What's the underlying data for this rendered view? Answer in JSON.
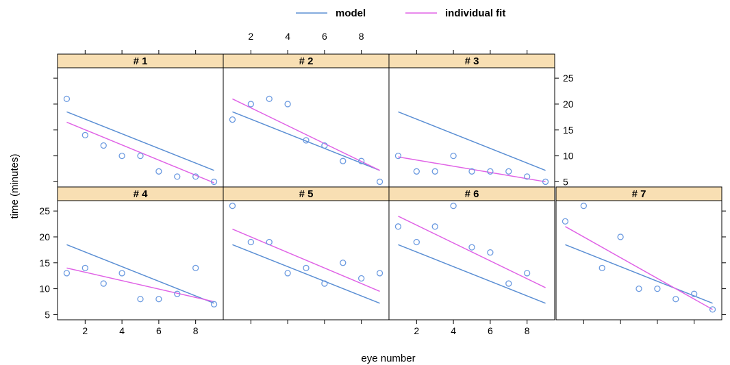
{
  "chart_data": {
    "type": "scatter",
    "layout": "lattice 4 columns x 2 rows, panels #1-#3 top row, #4-#7 bottom row",
    "xlabel": "eye number",
    "ylabel": "time (minutes)",
    "xlim": [
      0.5,
      9.5
    ],
    "ylim": [
      4,
      27
    ],
    "xticks": [
      2,
      4,
      6,
      8
    ],
    "yticks": [
      5,
      10,
      15,
      20,
      25
    ],
    "legend": {
      "placement": "top",
      "entries": [
        {
          "label": "model",
          "color": "#5b8fd4"
        },
        {
          "label": "individual fit",
          "color": "#e063e6"
        }
      ]
    },
    "colors": {
      "strip": "#f8dfb3",
      "points": "#6b9ae0",
      "model_line": "#5b8fd4",
      "fit_line": "#e063e6"
    },
    "model_line": {
      "x": [
        1,
        9
      ],
      "y": [
        18.5,
        7.2
      ]
    },
    "panels": [
      {
        "label": "# 1",
        "x": [
          1,
          2,
          3,
          4,
          5,
          6,
          7,
          8,
          9
        ],
        "y": [
          21,
          14,
          12,
          10,
          10,
          7,
          6,
          6,
          5
        ],
        "fit_line": {
          "x": [
            1,
            9
          ],
          "y": [
            16.5,
            4.8
          ]
        }
      },
      {
        "label": "# 2",
        "x": [
          1,
          2,
          3,
          4,
          5,
          6,
          7,
          8,
          9
        ],
        "y": [
          17,
          20,
          21,
          20,
          13,
          12,
          9,
          9,
          5
        ],
        "fit_line": {
          "x": [
            1,
            9
          ],
          "y": [
            21.0,
            7.2
          ]
        }
      },
      {
        "label": "# 3",
        "x": [
          1,
          2,
          3,
          4,
          5,
          6,
          7,
          8,
          9
        ],
        "y": [
          10,
          7,
          7,
          10,
          7,
          7,
          7,
          6,
          5
        ],
        "fit_line": {
          "x": [
            1,
            9
          ],
          "y": [
            9.8,
            5.0
          ]
        }
      },
      {
        "label": "# 4",
        "x": [
          1,
          2,
          3,
          4,
          5,
          6,
          7,
          8,
          9
        ],
        "y": [
          13,
          14,
          11,
          13,
          8,
          8,
          9,
          14,
          7
        ],
        "fit_line": {
          "x": [
            1,
            9
          ],
          "y": [
            14.0,
            7.5
          ]
        }
      },
      {
        "label": "# 5",
        "x": [
          1,
          2,
          3,
          4,
          5,
          6,
          7,
          8,
          9
        ],
        "y": [
          26,
          19,
          19,
          13,
          14,
          11,
          15,
          12,
          13
        ],
        "fit_line": {
          "x": [
            1,
            9
          ],
          "y": [
            21.5,
            9.5
          ]
        }
      },
      {
        "label": "# 6",
        "x": [
          1,
          2,
          3,
          4,
          5,
          6,
          7,
          8
        ],
        "y": [
          22,
          19,
          22,
          26,
          18,
          17,
          11,
          13
        ],
        "fit_line": {
          "x": [
            1,
            9
          ],
          "y": [
            24.0,
            10.2
          ]
        }
      },
      {
        "label": "# 7",
        "x": [
          1,
          2,
          3,
          4,
          5,
          6,
          7,
          8,
          9
        ],
        "y": [
          23,
          26,
          14,
          20,
          10,
          10,
          8,
          9,
          6
        ],
        "fit_line": {
          "x": [
            1,
            9
          ],
          "y": [
            22.0,
            6.0
          ]
        }
      }
    ]
  }
}
